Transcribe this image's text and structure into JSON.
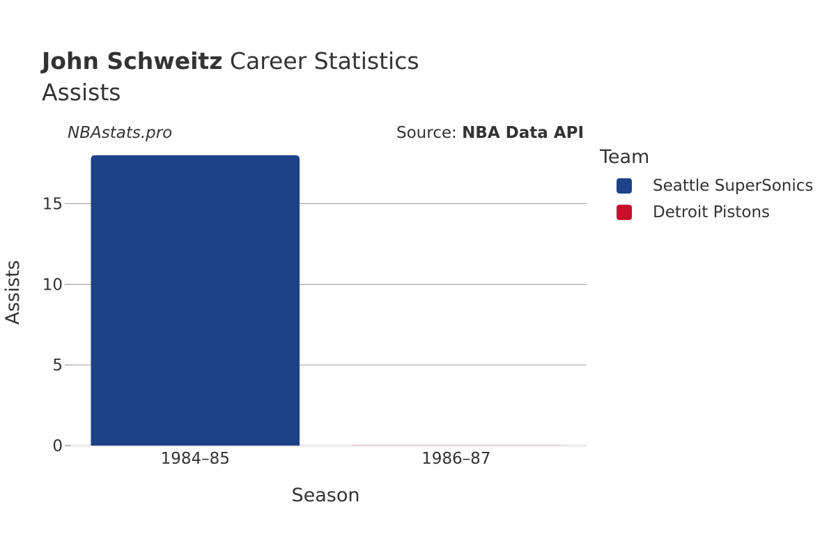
{
  "header": {
    "player_name": "John Schweitz",
    "title_suffix": " Career Statistics",
    "subtitle": "Assists",
    "watermark": "NBAstats.pro",
    "source_prefix": "Source: ",
    "source_name": "NBA Data API"
  },
  "legend": {
    "title": "Team",
    "items": [
      {
        "label": "Seattle SuperSonics",
        "color": "#1d428a"
      },
      {
        "label": "Detroit Pistons",
        "color": "#c8102e"
      }
    ]
  },
  "chart_data": {
    "type": "bar",
    "categories": [
      "1984–85",
      "1986–87"
    ],
    "series": [
      {
        "name": "Seattle SuperSonics",
        "color": "#1d428a",
        "values": [
          18,
          null
        ]
      },
      {
        "name": "Detroit Pistons",
        "color": "#c8102e",
        "values": [
          null,
          0
        ]
      }
    ],
    "xlabel": "Season",
    "ylabel": "Assists",
    "ylim": [
      0,
      18
    ],
    "yticks": [
      0,
      5,
      10,
      15
    ],
    "grid": true,
    "legend_position": "right"
  }
}
